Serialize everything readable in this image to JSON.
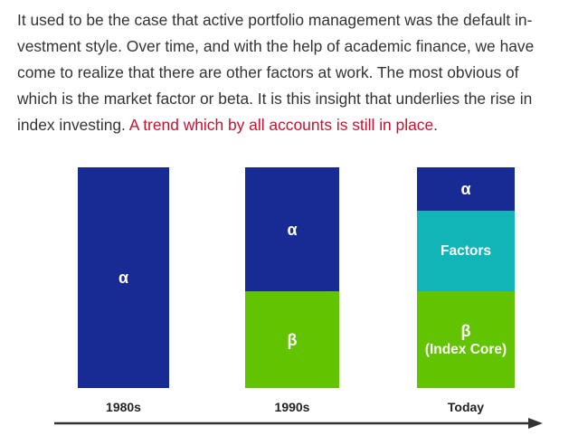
{
  "article": {
    "paragraph_text": "It used to be the case that active portfolio management was the default in-vestment style. Over time, and with the help of academic finance, we have come to realize that there are other factors at work. The most obvious of which is the market factor or beta. It is this insight that underlies the rise in index investing.",
    "highlight_text": "A trend which by all accounts is still in place",
    "trailing_text": "."
  },
  "figure": {
    "columns": [
      {
        "label": "1980s",
        "segments": [
          {
            "label": "α"
          }
        ]
      },
      {
        "label": "1990s",
        "segments": [
          {
            "label": "α"
          },
          {
            "label": "β"
          }
        ]
      },
      {
        "label": "Today",
        "segments": [
          {
            "label": "α"
          },
          {
            "label": "Factors"
          },
          {
            "label": "β"
          },
          {
            "label": "(Index Core)"
          }
        ]
      }
    ]
  },
  "colors": {
    "alpha": "#182b94",
    "beta": "#62c300",
    "factors": "#11b5b8",
    "highlight": "#c8102e",
    "timeline": "#333333"
  },
  "icons": {
    "timeline_arrow": "arrow-right-icon"
  }
}
